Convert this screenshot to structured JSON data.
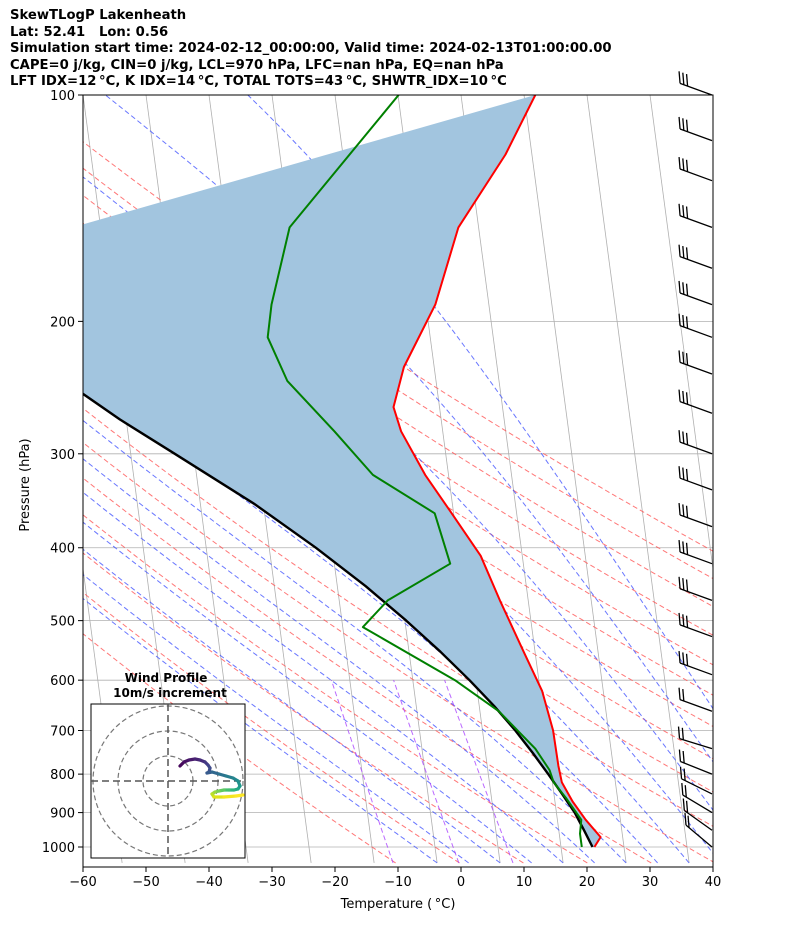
{
  "header": {
    "line1": "SkewTLogP Lakenheath",
    "line2": "Lat: 52.41   Lon: 0.56",
    "line3": "Simulation start time: 2024-02-12_00:00:00, Valid time: 2024-02-13T01:00:00.00",
    "line4": "CAPE=0 j/kg, CIN=0 j/kg, LCL=970 hPa, LFC=nan hPa, EQ=nan hPa",
    "line5": "LFT IDX=12 °C, K IDX=14 °C, TOTAL TOTS=43 °C, SHWTR_IDX=10 °C"
  },
  "chart_data": {
    "type": "line",
    "xlabel": "Temperature ( °C)",
    "ylabel": "Pressure (hPa)",
    "x_ticks": [
      "−60",
      "−50",
      "−40",
      "−30",
      "−20",
      "−10",
      "0",
      "10",
      "20",
      "30",
      "40"
    ],
    "x_tick_values": [
      -60,
      -50,
      -40,
      -30,
      -20,
      -10,
      0,
      10,
      20,
      30,
      40
    ],
    "y_ticks": [
      "100",
      "200",
      "300",
      "400",
      "500",
      "600",
      "700",
      "800",
      "900",
      "1000"
    ],
    "y_tick_values": [
      100,
      200,
      300,
      400,
      500,
      600,
      700,
      800,
      900,
      1000
    ],
    "xlim": [
      -60,
      40
    ],
    "ylim": [
      1050,
      100
    ],
    "y_scale": "log",
    "skew": "skew-T log-P",
    "grid": true,
    "colors": {
      "temperature": "#ff0000",
      "dewpoint": "#008000",
      "parcel": "#000000",
      "cape_fill": "#a2c5df",
      "dry_adiabats": "#ff5555",
      "moist_adiabats": "#4455ff",
      "mixing_ratio": "#aa44ff",
      "isotherms": "#b0b0b0"
    },
    "series": [
      {
        "name": "Temperature",
        "x": [
          5.3,
          6.5,
          4.5,
          2.8,
          1.5,
          1.3,
          1.2,
          0.3,
          -1.8,
          -4.5,
          -6.6,
          -10.3,
          -13.7,
          -16.6,
          -17.3,
          -14.8,
          -8.5,
          -3.2,
          5.8,
          11.8
        ],
        "y": [
          1000,
          970,
          920,
          870,
          820,
          780,
          700,
          620,
          550,
          470,
          410,
          360,
          320,
          280,
          260,
          230,
          190,
          150,
          120,
          100
        ]
      },
      {
        "name": "Dewpoint",
        "x": [
          3.3,
          3.3,
          3.8,
          1.8,
          0.2,
          -0.2,
          -2.0,
          -7.0,
          -13.3,
          -26.8,
          -22.3,
          -11.6,
          -13.0,
          -22.0,
          -27.2,
          -33.6,
          -35.8,
          -34.5,
          -30.0,
          -9.9
        ],
        "y": [
          1000,
          960,
          920,
          860,
          820,
          790,
          740,
          660,
          600,
          510,
          470,
          420,
          360,
          320,
          280,
          240,
          210,
          190,
          150,
          100
        ]
      },
      {
        "name": "Parcel",
        "x": [
          5.0,
          4.0,
          2.9,
          1.3,
          -0.5,
          -2.5,
          -4.8,
          -7.6,
          -11.0,
          -15.0,
          -19.8,
          -25.5,
          -32.6,
          -41.4,
          -53.0,
          -61.0,
          -69.0,
          -79.5,
          -88.0
        ],
        "y": [
          1000,
          950,
          900,
          850,
          800,
          750,
          700,
          650,
          600,
          550,
          500,
          450,
          400,
          350,
          300,
          270,
          240,
          200,
          170
        ]
      }
    ],
    "barbs_title": "",
    "inset": {
      "title": "Wind Profile",
      "subtitle": "10m/s increment",
      "rings": [
        10,
        20,
        30
      ]
    }
  }
}
